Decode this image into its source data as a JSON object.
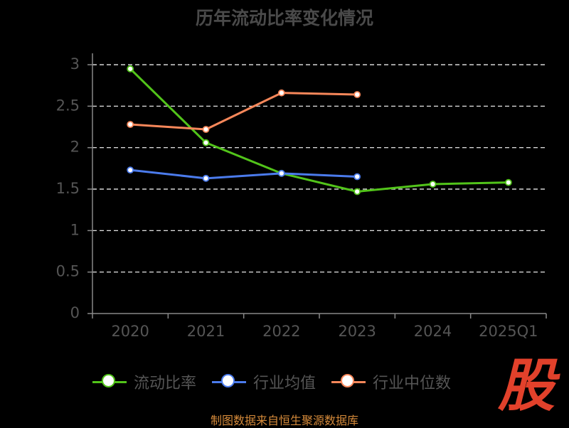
{
  "title": "历年流动比率变化情况",
  "source": "制图数据来自恒生聚源数据库",
  "watermark": "股",
  "colors": {
    "background": "#000000",
    "axis": "#888888",
    "grid": "#ffffff",
    "tick_label": "#555555"
  },
  "chart_data": {
    "type": "line",
    "title": "历年流动比率变化情况",
    "xlabel": "",
    "ylabel": "",
    "categories": [
      "2020",
      "2021",
      "2022",
      "2023",
      "2024",
      "2025Q1"
    ],
    "y_ticks": [
      "0",
      "0.5",
      "1",
      "1.5",
      "2",
      "2.5",
      "3"
    ],
    "ylim": [
      0,
      3
    ],
    "grid": true,
    "legend_position": "bottom",
    "series": [
      {
        "name": "流动比率",
        "color": "#52c41a",
        "values": [
          2.95,
          2.06,
          1.69,
          1.47,
          1.56,
          1.58
        ]
      },
      {
        "name": "行业均值",
        "color": "#4b7bec",
        "values": [
          1.73,
          1.63,
          1.69,
          1.65,
          null,
          null
        ]
      },
      {
        "name": "行业中位数",
        "color": "#f7875a",
        "values": [
          2.28,
          2.22,
          2.66,
          2.64,
          null,
          null
        ]
      }
    ]
  }
}
